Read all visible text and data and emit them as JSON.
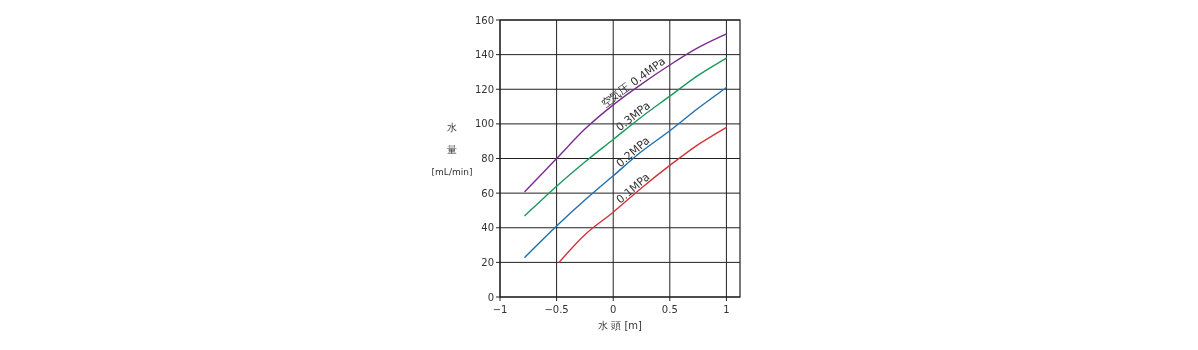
{
  "chart_data": {
    "type": "line",
    "xlabel": "水 頭 [m]",
    "ylabel": "水量 [mL/min]",
    "xlim": [
      -1,
      1.12
    ],
    "xticks": [
      {
        "value": -1,
        "label": "−1"
      },
      {
        "value": -0.5,
        "label": "−0.5"
      },
      0,
      0.5,
      1
    ],
    "ylim": [
      0,
      160
    ],
    "yticks": [
      0,
      20,
      40,
      60,
      80,
      100,
      120,
      140,
      160
    ],
    "grid": true,
    "legend": false,
    "series": [
      {
        "name": "空気圧 0.4MPa",
        "color": "#7b2d8e",
        "x": [
          -0.78,
          -0.5,
          -0.25,
          0,
          0.25,
          0.5,
          0.75,
          1
        ],
        "values": [
          61,
          80,
          97,
          111,
          123,
          134,
          144,
          152
        ]
      },
      {
        "name": "0.3MPa",
        "color": "#1a9a5a",
        "x": [
          -0.78,
          -0.5,
          -0.25,
          0,
          0.25,
          0.5,
          0.75,
          1
        ],
        "values": [
          47,
          64,
          78,
          91,
          104,
          116,
          128,
          138
        ]
      },
      {
        "name": "0.2MPa",
        "color": "#1f6fb0",
        "x": [
          -0.78,
          -0.5,
          -0.25,
          0,
          0.25,
          0.5,
          0.75,
          1
        ],
        "values": [
          23,
          41,
          56,
          70,
          84,
          96,
          109,
          121
        ]
      },
      {
        "name": "0.1MPa",
        "color": "#d0343a",
        "x": [
          -0.48,
          -0.25,
          0,
          0.25,
          0.5,
          0.75,
          1
        ],
        "values": [
          20,
          36,
          49,
          63,
          76,
          88,
          98
        ]
      }
    ]
  }
}
